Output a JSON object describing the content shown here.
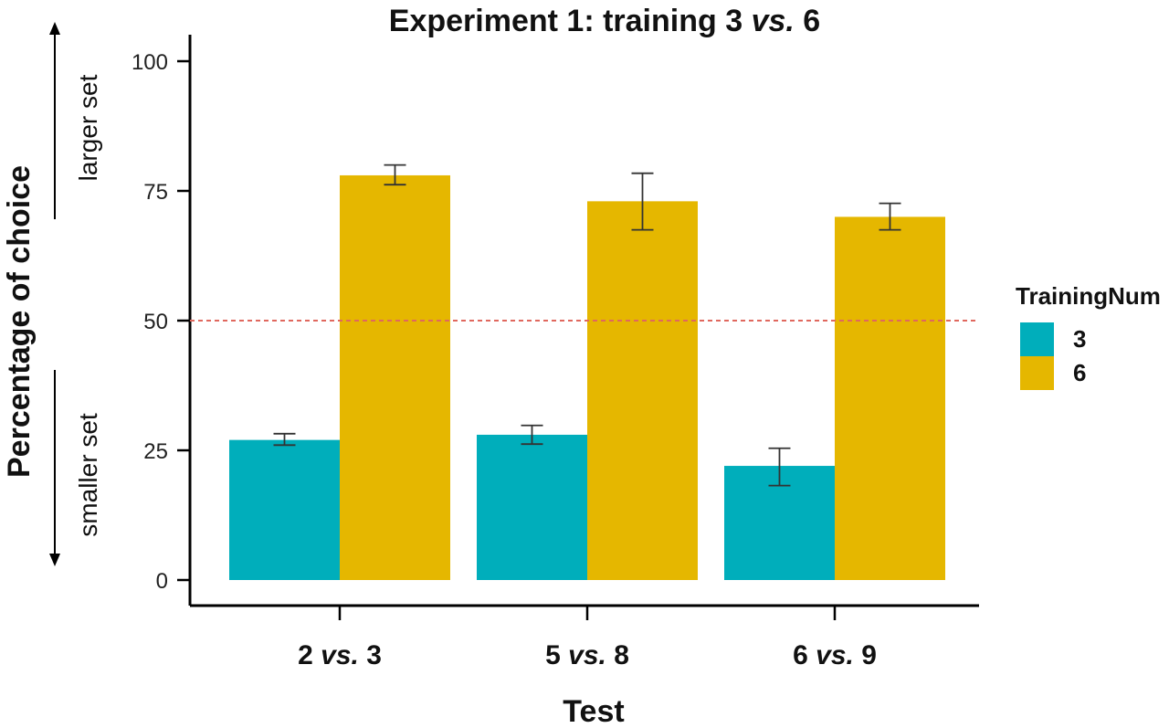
{
  "chart_data": {
    "type": "bar",
    "title": "Experiment 1: training 3 vs. 6",
    "title_parts": {
      "prefix": "Experiment 1: training 3 ",
      "italic": "vs.",
      "suffix": " 6"
    },
    "xlabel": "Test",
    "ylabel": "Percentage of choice",
    "categories": [
      "2 vs. 3",
      "5 vs. 8",
      "6 vs. 9"
    ],
    "category_parts": [
      {
        "a": "2",
        "vs": "vs.",
        "b": "3"
      },
      {
        "a": "5",
        "vs": "vs.",
        "b": "8"
      },
      {
        "a": "6",
        "vs": "vs.",
        "b": "9"
      }
    ],
    "ylim": [
      0,
      100
    ],
    "yticks": [
      0,
      25,
      50,
      75,
      100
    ],
    "reference_line": {
      "y": 50,
      "color": "#E0685E",
      "style": "dashed"
    },
    "legend": {
      "title": "TrainingNum",
      "position": "right"
    },
    "side_annotations": {
      "upper": "larger set",
      "lower": "smaller set"
    },
    "series": [
      {
        "name": "3",
        "color": "#00AEBB",
        "values": [
          27,
          28,
          22
        ],
        "err_low": [
          26,
          26.2,
          18.2
        ],
        "err_high": [
          28.2,
          29.8,
          25.4
        ]
      },
      {
        "name": "6",
        "color": "#E5B700",
        "values": [
          78,
          73,
          70
        ],
        "err_low": [
          76.2,
          67.5,
          67.5
        ],
        "err_high": [
          80,
          78.4,
          72.6
        ]
      }
    ],
    "grid": false
  }
}
